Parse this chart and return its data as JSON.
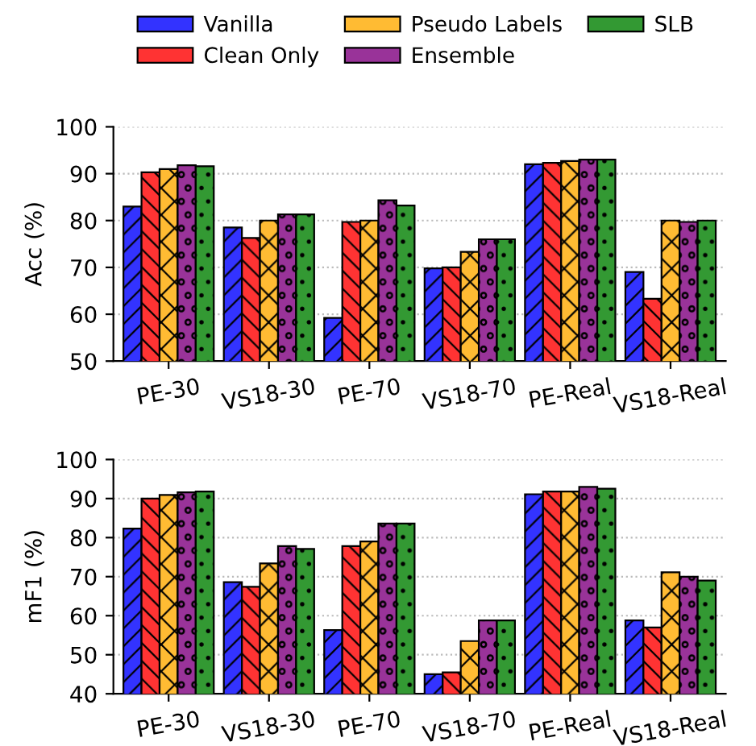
{
  "chart_data": [
    {
      "type": "bar",
      "ylabel": "Acc (%)",
      "categories": [
        "PE-30",
        "VS18-30",
        "PE-70",
        "VS18-70",
        "PE-Real",
        "VS18-Real"
      ],
      "ylim": [
        50,
        100
      ],
      "yticks": [
        50,
        60,
        70,
        80,
        90,
        100
      ],
      "grid": "y",
      "legend": "top",
      "series": [
        {
          "name": "Vanilla",
          "color": "#3333ff",
          "values": [
            83,
            78.5,
            59.2,
            69.8,
            92,
            69
          ]
        },
        {
          "name": "Clean Only",
          "color": "#ff3333",
          "values": [
            90.3,
            76.3,
            79.7,
            70,
            92.3,
            63.3
          ]
        },
        {
          "name": "Pseudo Labels",
          "color": "#ffbb33",
          "values": [
            91,
            80,
            80,
            73.3,
            92.7,
            80
          ]
        },
        {
          "name": "Ensemble",
          "color": "#993399",
          "values": [
            91.8,
            81.3,
            84.3,
            76,
            93,
            79.7
          ]
        },
        {
          "name": "SLB",
          "color": "#339933",
          "values": [
            91.6,
            81.3,
            83.2,
            76,
            93,
            80
          ]
        }
      ]
    },
    {
      "type": "bar",
      "ylabel": "mF1 (%)",
      "categories": [
        "PE-30",
        "VS18-30",
        "PE-70",
        "VS18-70",
        "PE-Real",
        "VS18-Real"
      ],
      "ylim": [
        40,
        100
      ],
      "yticks": [
        40,
        50,
        60,
        70,
        80,
        90,
        100
      ],
      "grid": "y",
      "series": [
        {
          "color": "#3333ff",
          "values": [
            82.3,
            68.6,
            56.3,
            45,
            91.1,
            58.8
          ]
        },
        {
          "color": "#ff3333",
          "values": [
            90,
            67.4,
            77.8,
            45.5,
            91.8,
            57
          ]
        },
        {
          "color": "#ffbb33",
          "values": [
            90.9,
            73.4,
            79,
            53.5,
            91.8,
            71.1
          ]
        },
        {
          "color": "#993399",
          "values": [
            91.6,
            77.8,
            83.6,
            58.8,
            93,
            70
          ]
        },
        {
          "color": "#339933",
          "values": [
            91.8,
            77.1,
            83.6,
            58.8,
            92.5,
            69
          ]
        }
      ]
    }
  ]
}
